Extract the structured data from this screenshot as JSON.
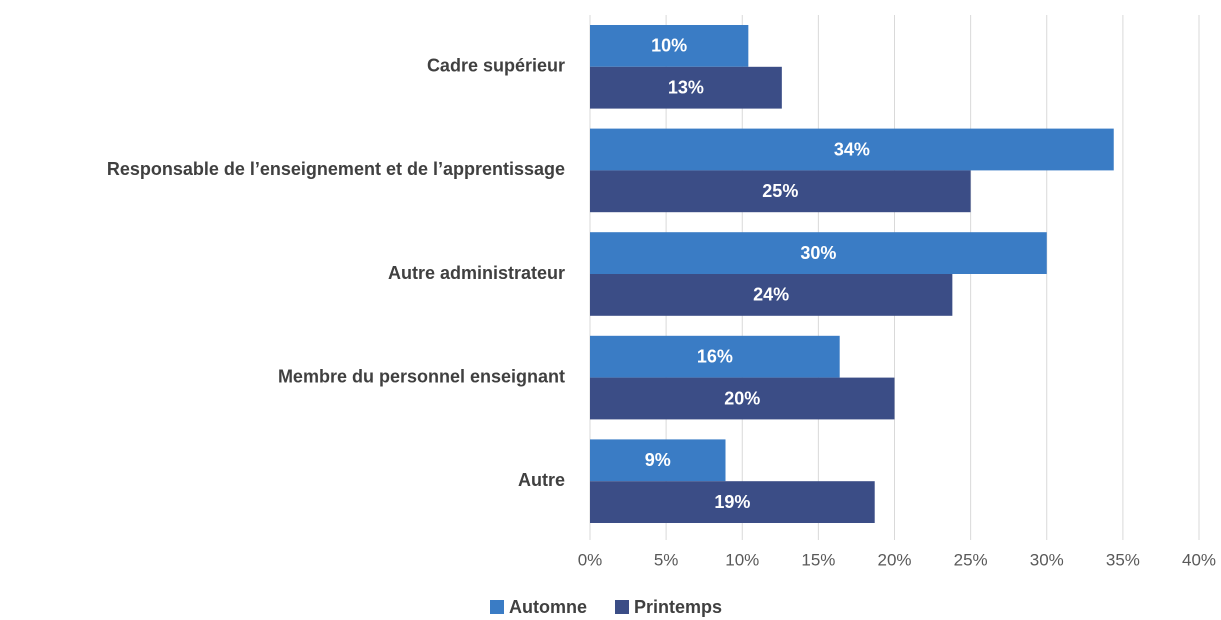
{
  "chart_data": {
    "type": "barh",
    "categories": [
      "Cadre supérieur",
      "Responsable de l’enseignement et de l’apprentissage",
      "Autre administrateur",
      "Membre du personnel enseignant",
      "Autre"
    ],
    "series": [
      {
        "name": "Automne",
        "color": "#3a7cc5",
        "values": [
          10.4,
          34.4,
          30.0,
          16.4,
          8.9
        ],
        "value_labels": [
          "10%",
          "34%",
          "30%",
          "16%",
          "9%"
        ]
      },
      {
        "name": "Printemps",
        "color": "#3b4d86",
        "values": [
          12.6,
          25.0,
          23.8,
          20.0,
          18.7
        ],
        "value_labels": [
          "13%",
          "25%",
          "24%",
          "20%",
          "19%"
        ]
      }
    ],
    "xlim": [
      0,
      40
    ],
    "xticks": [
      {
        "value": 0,
        "label": "0%"
      },
      {
        "value": 5,
        "label": "5%"
      },
      {
        "value": 10,
        "label": "10%"
      },
      {
        "value": 15,
        "label": "15%"
      },
      {
        "value": 20,
        "label": "20%"
      },
      {
        "value": 25,
        "label": "25%"
      },
      {
        "value": 30,
        "label": "30%"
      },
      {
        "value": 35,
        "label": "35%"
      },
      {
        "value": 40,
        "label": "40%"
      }
    ],
    "grid": true,
    "legend": "bottom"
  }
}
